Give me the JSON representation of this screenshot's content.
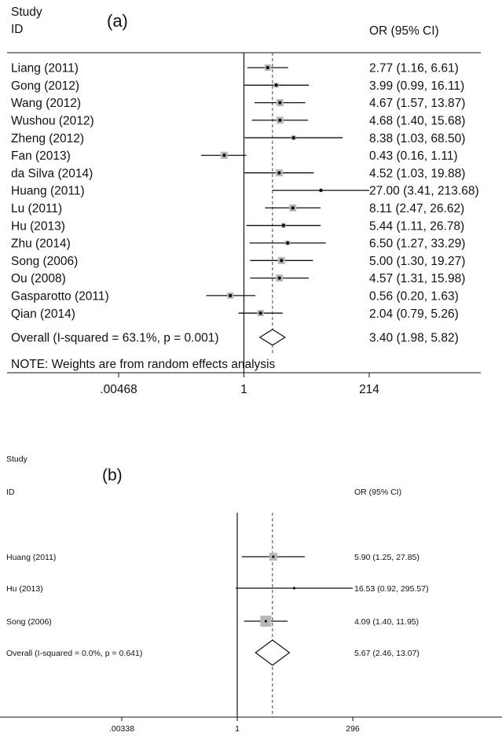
{
  "chart_data": [
    {
      "type": "forest",
      "panel_label": "(a)",
      "header_left": [
        "Study",
        "ID"
      ],
      "header_right": "OR (95% CI)",
      "x_scale": "log",
      "x_ticks": [
        0.00468,
        1,
        214
      ],
      "x_tick_labels": [
        ".00468",
        "1",
        "214"
      ],
      "null_line": 1,
      "summary_line": 3.4,
      "studies": [
        {
          "label": "Liang (2011)",
          "or": 2.77,
          "lo": 1.16,
          "hi": 6.61,
          "ci_text": "2.77 (1.16, 6.61)"
        },
        {
          "label": "Gong (2012)",
          "or": 3.99,
          "lo": 0.99,
          "hi": 16.11,
          "ci_text": "3.99 (0.99, 16.11)"
        },
        {
          "label": "Wang (2012)",
          "or": 4.67,
          "lo": 1.57,
          "hi": 13.87,
          "ci_text": "4.67 (1.57, 13.87)"
        },
        {
          "label": "Wushou (2012)",
          "or": 4.68,
          "lo": 1.4,
          "hi": 15.68,
          "ci_text": "4.68 (1.40, 15.68)"
        },
        {
          "label": "Zheng (2012)",
          "or": 8.38,
          "lo": 1.03,
          "hi": 68.5,
          "ci_text": "8.38 (1.03, 68.50)"
        },
        {
          "label": "Fan (2013)",
          "or": 0.43,
          "lo": 0.16,
          "hi": 1.11,
          "ci_text": "0.43 (0.16, 1.11)"
        },
        {
          "label": "da Silva (2014)",
          "or": 4.52,
          "lo": 1.03,
          "hi": 19.88,
          "ci_text": "4.52 (1.03, 19.88)"
        },
        {
          "label": "Huang (2011)",
          "or": 27.0,
          "lo": 3.41,
          "hi": 213.68,
          "ci_text": "27.00 (3.41, 213.68)"
        },
        {
          "label": "Lu (2011)",
          "or": 8.11,
          "lo": 2.47,
          "hi": 26.62,
          "ci_text": "8.11 (2.47, 26.62)"
        },
        {
          "label": "Hu (2013)",
          "or": 5.44,
          "lo": 1.11,
          "hi": 26.78,
          "ci_text": "5.44 (1.11, 26.78)"
        },
        {
          "label": "Zhu (2014)",
          "or": 6.5,
          "lo": 1.27,
          "hi": 33.29,
          "ci_text": "6.50 (1.27, 33.29)"
        },
        {
          "label": "Song (2006)",
          "or": 5.0,
          "lo": 1.3,
          "hi": 19.27,
          "ci_text": "5.00 (1.30, 19.27)"
        },
        {
          "label": "Ou (2008)",
          "or": 4.57,
          "lo": 1.31,
          "hi": 15.98,
          "ci_text": "4.57 (1.31, 15.98)"
        },
        {
          "label": "Gasparotto (2011)",
          "or": 0.56,
          "lo": 0.2,
          "hi": 1.63,
          "ci_text": "0.56 (0.20, 1.63)"
        },
        {
          "label": "Qian (2014)",
          "or": 2.04,
          "lo": 0.79,
          "hi": 5.26,
          "ci_text": "2.04 (0.79, 5.26)"
        }
      ],
      "overall": {
        "label": "Overall  (I-squared = 63.1%, p = 0.001)",
        "or": 3.4,
        "lo": 1.98,
        "hi": 5.82,
        "ci_text": "3.40 (1.98, 5.82)"
      },
      "note": "NOTE: Weights are from random effects analysis"
    },
    {
      "type": "forest",
      "panel_label": "(b)",
      "header_left": [
        "Study",
        "ID"
      ],
      "header_right": "OR (95% CI)",
      "x_scale": "log",
      "x_ticks": [
        0.00338,
        1,
        296
      ],
      "x_tick_labels": [
        ".00338",
        "1",
        "296"
      ],
      "null_line": 1,
      "summary_line": 5.67,
      "studies": [
        {
          "label": "Huang (2011)",
          "or": 5.9,
          "lo": 1.25,
          "hi": 27.85,
          "ci_text": "5.90 (1.25, 27.85)"
        },
        {
          "label": "Hu (2013)",
          "or": 16.53,
          "lo": 0.92,
          "hi": 295.57,
          "ci_text": "16.53 (0.92, 295.57)"
        },
        {
          "label": "Song (2006)",
          "or": 4.09,
          "lo": 1.4,
          "hi": 11.95,
          "ci_text": "4.09 (1.40, 11.95)"
        }
      ],
      "overall": {
        "label": "Overall  (I-squared = 0.0%, p = 0.641)",
        "or": 5.67,
        "lo": 2.46,
        "hi": 13.07,
        "ci_text": "5.67 (2.46, 13.07)"
      },
      "note": ""
    }
  ]
}
